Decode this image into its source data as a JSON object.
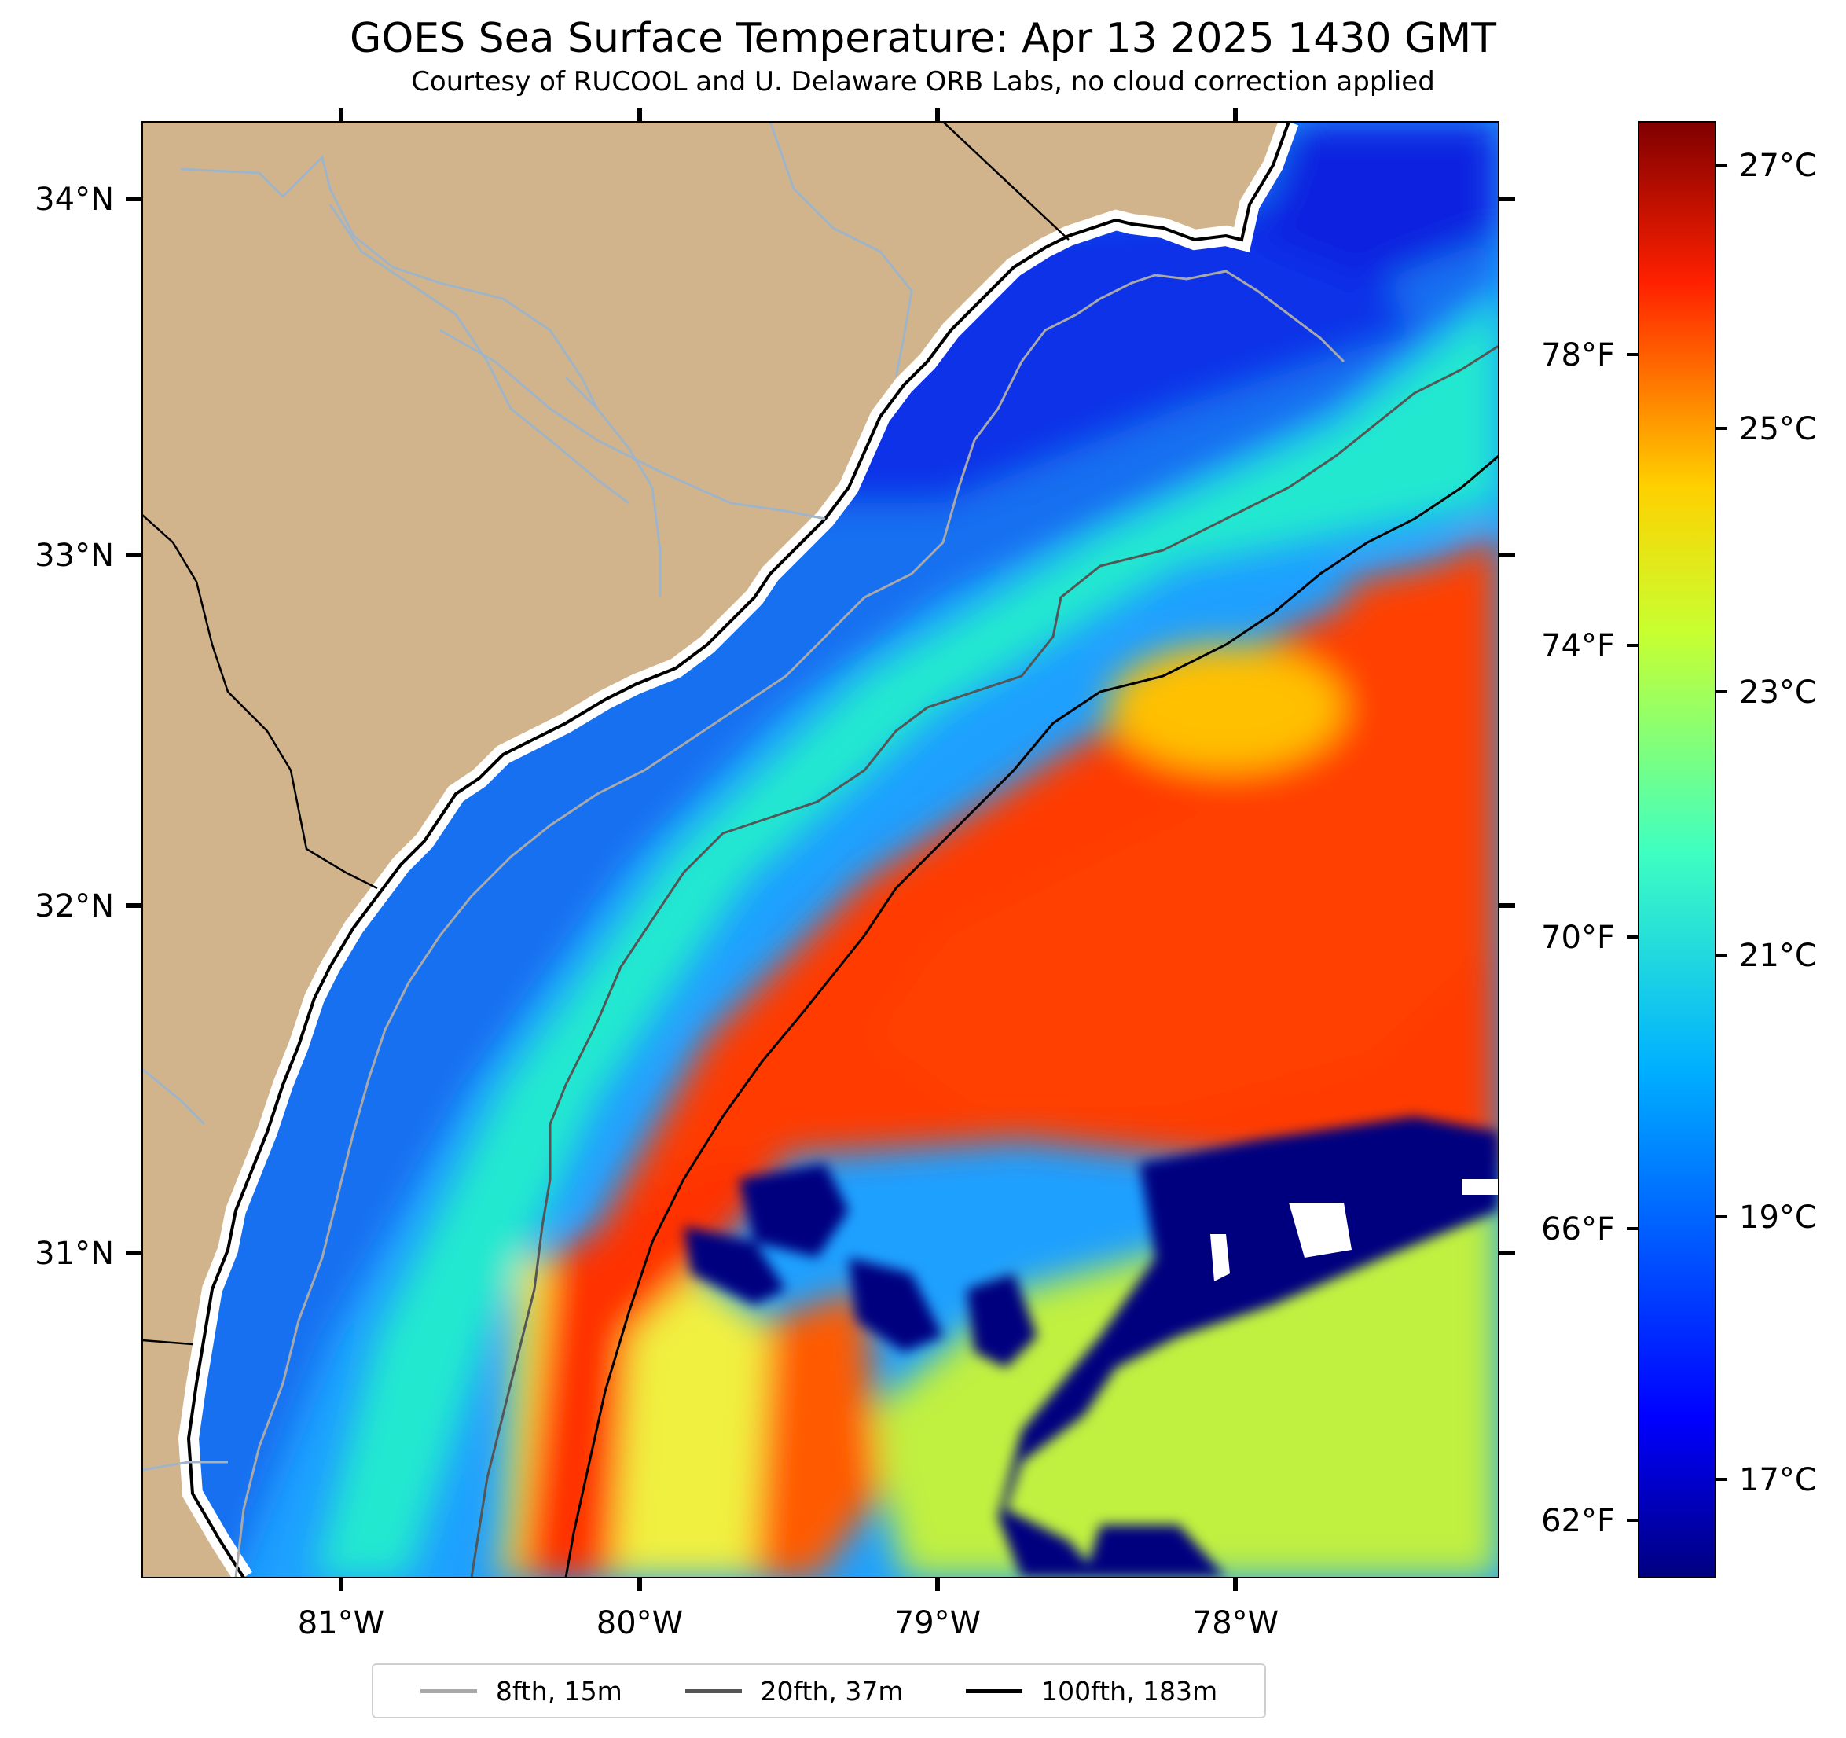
{
  "title": "GOES Sea Surface Temperature: Apr 13 2025 1430 GMT",
  "subtitle": "Courtesy of RUCOOL and U. Delaware ORB Labs, no cloud correction applied",
  "map": {
    "lon_labels": [
      "81°W",
      "80°W",
      "79°W",
      "78°W"
    ],
    "lat_labels": [
      "34°N",
      "33°N",
      "32°N",
      "31°N"
    ],
    "land_color": "#d2b48c",
    "coast_color": "#000000",
    "river_color": "#a0b4c8"
  },
  "colorbar": {
    "celsius_labels": [
      "27°C",
      "25°C",
      "23°C",
      "21°C",
      "19°C",
      "17°C"
    ],
    "fahrenheit_labels": [
      "78°F",
      "74°F",
      "70°F",
      "66°F",
      "62°F"
    ],
    "colormap": "jet",
    "range_c": [
      16.3,
      27.3
    ]
  },
  "legend": {
    "items": [
      {
        "label": "8fth, 15m",
        "color": "#a9a9a9"
      },
      {
        "label": "20fth, 37m",
        "color": "#555555"
      },
      {
        "label": "100fth, 183m",
        "color": "#000000"
      }
    ]
  }
}
